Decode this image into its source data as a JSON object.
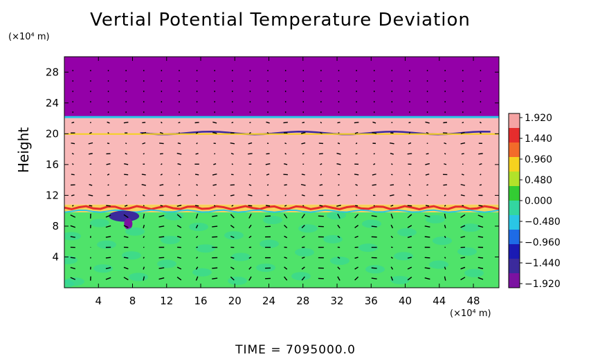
{
  "chart_data": {
    "type": "heatmap",
    "title": "Vertial Potential Temperature Deviation",
    "ylabel": "Height",
    "xunit": "(×10⁴ m)",
    "yunit": "(×10⁴ m)",
    "xlim": [
      0,
      51
    ],
    "ylim": [
      0,
      30
    ],
    "xticks": [
      4,
      8,
      12,
      16,
      20,
      24,
      28,
      32,
      36,
      40,
      44,
      48
    ],
    "yticks": [
      4,
      8,
      12,
      16,
      20,
      24,
      28
    ],
    "colorbar": {
      "labels": [
        "1.920",
        "1.440",
        "0.960",
        "0.480",
        "0.000",
        "−0.480",
        "−0.960",
        "−1.440",
        "−1.920"
      ],
      "colors": [
        "#f5a3a3",
        "#e62d2d",
        "#f26b2a",
        "#f5d21f",
        "#b2e22a",
        "#33cc33",
        "#33d6a0",
        "#2ac6e6",
        "#1e6be6",
        "#1a1ab3",
        "#3b2a9c",
        "#7b12a1"
      ]
    },
    "layers": [
      {
        "name": "upper",
        "y0": 22.2,
        "y1": 30,
        "color": "#9400a8"
      },
      {
        "name": "middle",
        "y0": 10.8,
        "y1": 22.2,
        "color": "#f9b9b9"
      },
      {
        "name": "lower",
        "y0": 0,
        "y1": 9.8,
        "color": "#4fe36a"
      }
    ],
    "time_label": "TIME",
    "time_value": "7095000.0"
  }
}
